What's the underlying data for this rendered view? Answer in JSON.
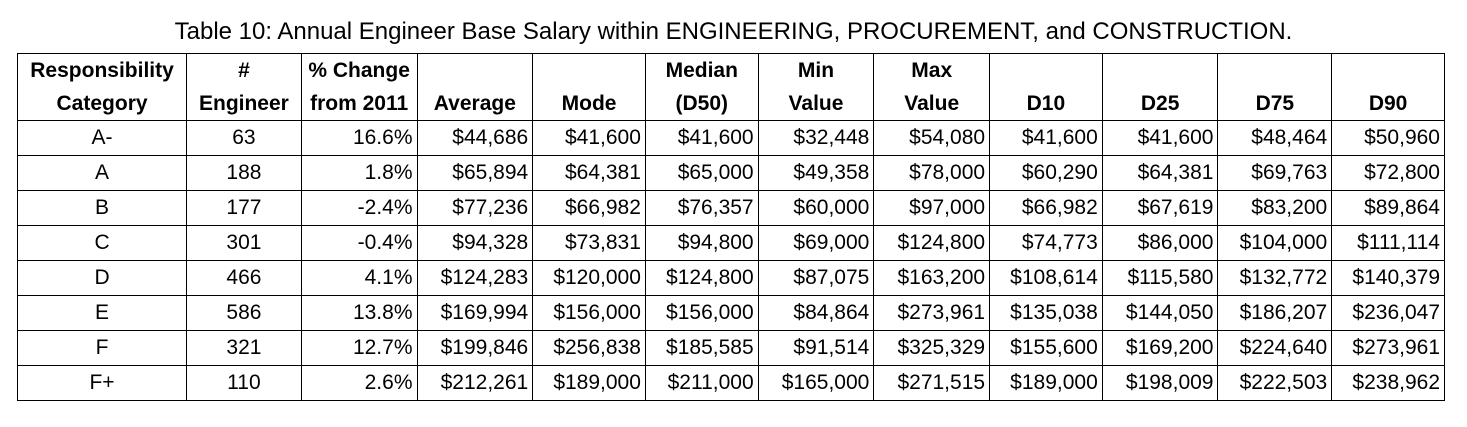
{
  "caption": "Table 10: Annual Engineer Base Salary within ENGINEERING, PROCUREMENT, and CONSTRUCTION.",
  "headers": [
    {
      "line1": "Responsibility",
      "line2": "Category"
    },
    {
      "line1": "#",
      "line2": "Engineer"
    },
    {
      "line1": "% Change",
      "line2": "from 2011"
    },
    {
      "line1": "",
      "line2": "Average"
    },
    {
      "line1": "",
      "line2": "Mode"
    },
    {
      "line1": "Median",
      "line2": "(D50)"
    },
    {
      "line1": "Min",
      "line2": "Value"
    },
    {
      "line1": "Max",
      "line2": "Value"
    },
    {
      "line1": "",
      "line2": "D10"
    },
    {
      "line1": "",
      "line2": "D25"
    },
    {
      "line1": "",
      "line2": "D75"
    },
    {
      "line1": "",
      "line2": "D90"
    }
  ],
  "rows": [
    [
      "A-",
      "63",
      "16.6%",
      "$44,686",
      "$41,600",
      "$41,600",
      "$32,448",
      "$54,080",
      "$41,600",
      "$41,600",
      "$48,464",
      "$50,960"
    ],
    [
      "A",
      "188",
      "1.8%",
      "$65,894",
      "$64,381",
      "$65,000",
      "$49,358",
      "$78,000",
      "$60,290",
      "$64,381",
      "$69,763",
      "$72,800"
    ],
    [
      "B",
      "177",
      "-2.4%",
      "$77,236",
      "$66,982",
      "$76,357",
      "$60,000",
      "$97,000",
      "$66,982",
      "$67,619",
      "$83,200",
      "$89,864"
    ],
    [
      "C",
      "301",
      "-0.4%",
      "$94,328",
      "$73,831",
      "$94,800",
      "$69,000",
      "$124,800",
      "$74,773",
      "$86,000",
      "$104,000",
      "$111,114"
    ],
    [
      "D",
      "466",
      "4.1%",
      "$124,283",
      "$120,000",
      "$124,800",
      "$87,075",
      "$163,200",
      "$108,614",
      "$115,580",
      "$132,772",
      "$140,379"
    ],
    [
      "E",
      "586",
      "13.8%",
      "$169,994",
      "$156,000",
      "$156,000",
      "$84,864",
      "$273,961",
      "$135,038",
      "$144,050",
      "$186,207",
      "$236,047"
    ],
    [
      "F",
      "321",
      "12.7%",
      "$199,846",
      "$256,838",
      "$185,585",
      "$91,514",
      "$325,329",
      "$155,600",
      "$169,200",
      "$224,640",
      "$273,961"
    ],
    [
      "F+",
      "110",
      "2.6%",
      "$212,261",
      "$189,000",
      "$211,000",
      "$165,000",
      "$271,515",
      "$189,000",
      "$198,009",
      "$222,503",
      "$238,962"
    ]
  ]
}
